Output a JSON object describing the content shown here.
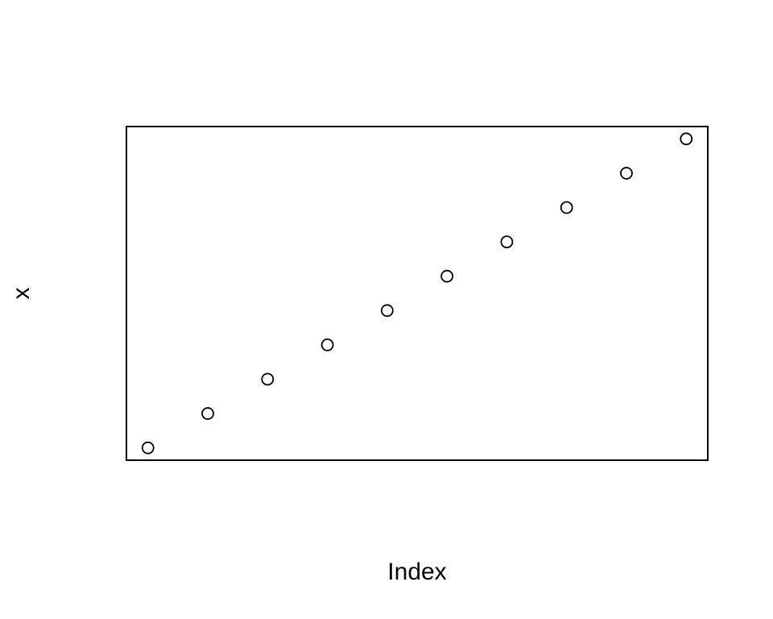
{
  "chart_data": {
    "type": "scatter",
    "title": "",
    "xlabel": "Index",
    "ylabel": "x",
    "x": [
      1,
      2,
      3,
      4,
      5,
      6,
      7,
      8,
      9,
      10
    ],
    "y": [
      1,
      2,
      3,
      4,
      5,
      6,
      7,
      8,
      9,
      10
    ],
    "xlim": [
      0.64,
      10.36
    ],
    "ylim": [
      0.64,
      10.36
    ],
    "grid": false,
    "axes_ticks_shown": false,
    "marker": "open-circle",
    "colors": {
      "point_stroke": "#000000",
      "frame": "#000000",
      "background": "#ffffff"
    }
  }
}
